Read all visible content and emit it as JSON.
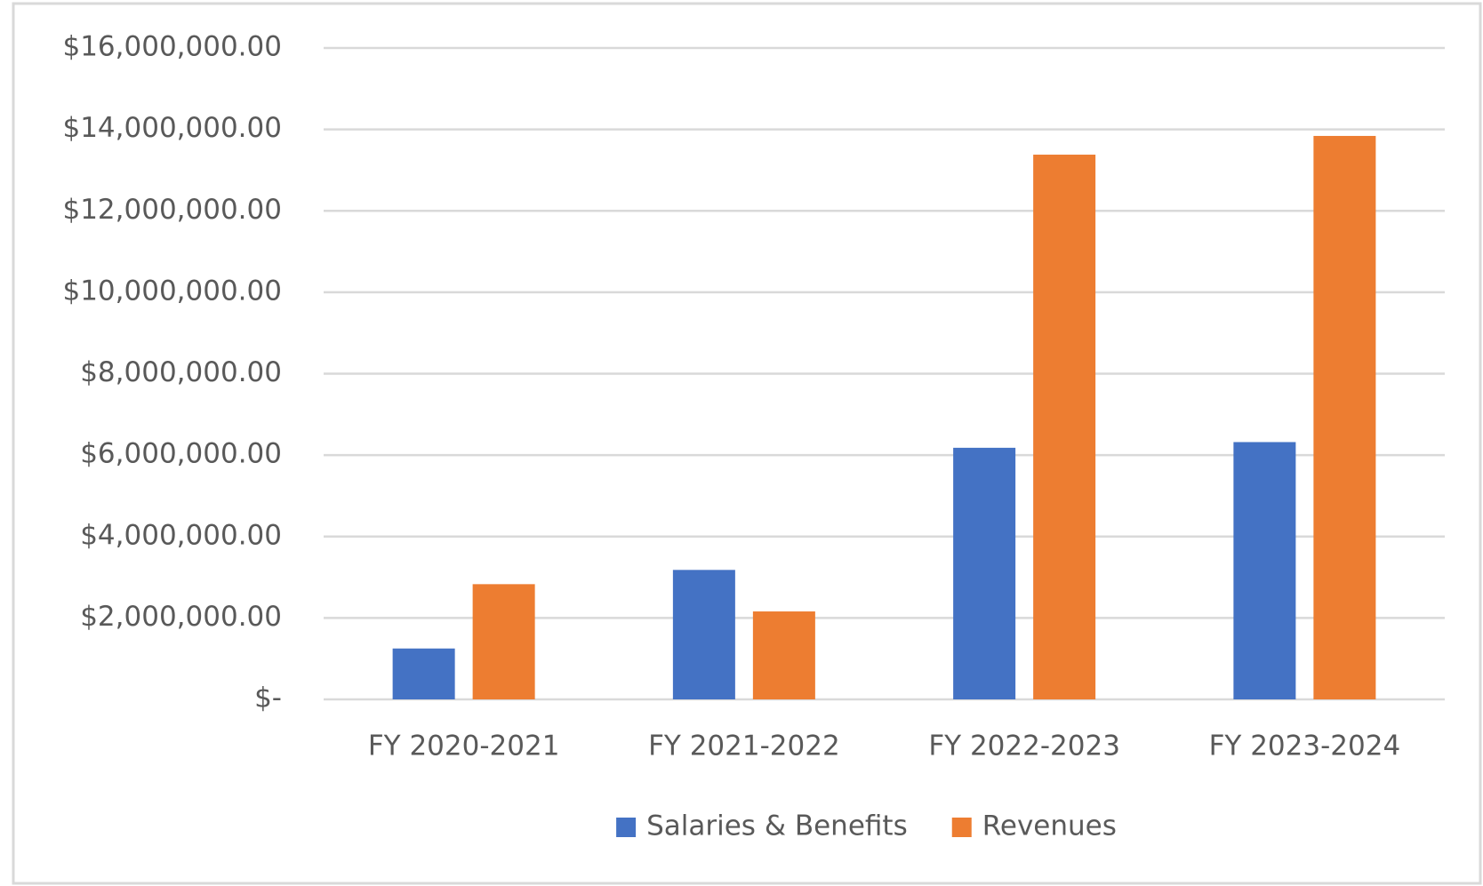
{
  "chart_data": {
    "type": "bar",
    "categories": [
      "FY 2020-2021",
      "FY 2021-2022",
      "FY 2022-2023",
      "FY 2023-2024"
    ],
    "series": [
      {
        "name": "Salaries & Benefits",
        "color": "#4472c4",
        "values": [
          1250000,
          3180000,
          6180000,
          6320000
        ]
      },
      {
        "name": "Revenues",
        "color": "#ed7d31",
        "values": [
          2830000,
          2160000,
          13380000,
          13840000
        ]
      }
    ],
    "ylim": [
      0,
      16000000
    ],
    "yticks": [
      {
        "value": 0,
        "label": "$-"
      },
      {
        "value": 2000000,
        "label": "$2,000,000.00"
      },
      {
        "value": 4000000,
        "label": "$4,000,000.00"
      },
      {
        "value": 6000000,
        "label": "$6,000,000.00"
      },
      {
        "value": 8000000,
        "label": "$8,000,000.00"
      },
      {
        "value": 10000000,
        "label": "$10,000,000.00"
      },
      {
        "value": 12000000,
        "label": "$12,000,000.00"
      },
      {
        "value": 14000000,
        "label": "$14,000,000.00"
      },
      {
        "value": 16000000,
        "label": "$16,000,000.00"
      }
    ],
    "grid": true,
    "legend": "bottom"
  }
}
